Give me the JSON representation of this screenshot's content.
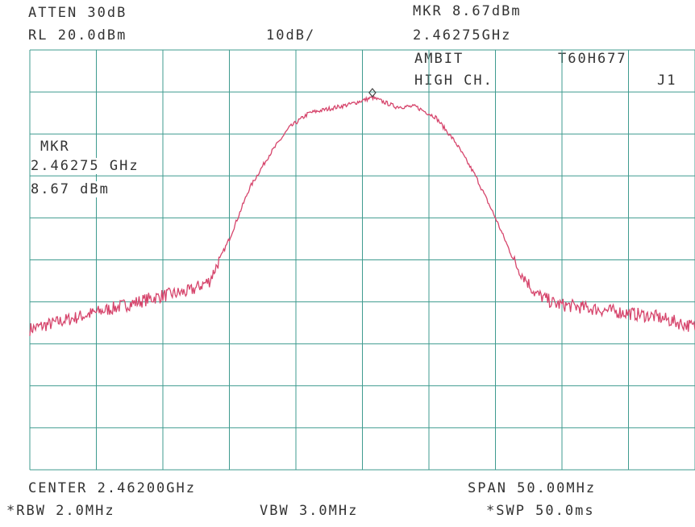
{
  "header": {
    "atten": "ATTEN 30dB",
    "ref_level": "RL 20.0dBm",
    "scale": "10dB/",
    "marker_level": "MKR 8.67dBm",
    "marker_freq": "2.46275GHz",
    "device": "AMBIT",
    "model": "T60H677",
    "channel": "HIGH CH.",
    "tag": "J1"
  },
  "marker_box": {
    "title": "MKR",
    "freq": "2.46275 GHz",
    "level": "8.67 dBm"
  },
  "footer": {
    "center": "CENTER 2.46200GHz",
    "span": "SPAN 50.00MHz",
    "rbw": "*RBW 2.0MHz",
    "vbw": "VBW 3.0MHz",
    "sweep": "*SWP 50.0ms"
  },
  "colors": {
    "grid": "#3f9b8f",
    "trace": "#d6456c",
    "marker": "#444444"
  },
  "chart_data": {
    "type": "line",
    "x_unit": "GHz",
    "y_unit": "dBm",
    "xlim": [
      2.437,
      2.487
    ],
    "ylim": [
      -80,
      20
    ],
    "grid": true,
    "marker": {
      "x": 2.46275,
      "y": 8.67
    },
    "series": [
      {
        "x": [
          2.437,
          2.4395,
          2.442,
          2.4445,
          2.447,
          2.449,
          2.4505,
          2.452,
          2.4535,
          2.455,
          2.4565,
          2.458,
          2.4595,
          2.461,
          2.46275,
          2.4645,
          2.466,
          2.4675,
          2.469,
          2.4705,
          2.472,
          2.4735,
          2.475,
          2.4765,
          2.479,
          2.4815,
          2.484,
          2.487
        ],
        "y": [
          -46.5,
          -44.5,
          -42.5,
          -40.5,
          -38.5,
          -37.5,
          -35.0,
          -25.0,
          -13.0,
          -5.0,
          1.5,
          5.0,
          6.0,
          7.0,
          8.67,
          6.5,
          6.5,
          4.0,
          -2.0,
          -10.0,
          -20.0,
          -31.0,
          -38.0,
          -40.5,
          -41.5,
          -42.5,
          -43.5,
          -46.0
        ]
      }
    ]
  }
}
